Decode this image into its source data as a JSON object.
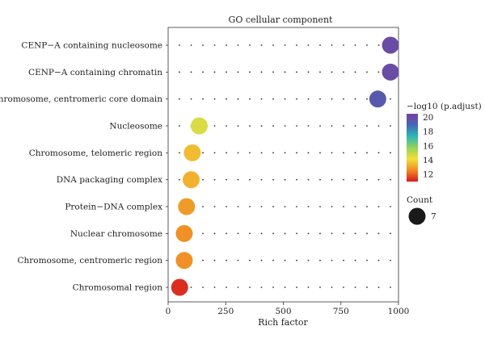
{
  "chart_data": {
    "type": "scatter",
    "title": "GO cellular component",
    "xlabel": "Rich factor",
    "ylabel": "",
    "xlim": [
      0,
      1000
    ],
    "x_ticks": [
      0,
      250,
      500,
      750,
      1000
    ],
    "categories": [
      "CENP−A containing nucleosome",
      "CENP−A containing chromatin",
      "Chromosome, centromeric core domain",
      "Nucleosome",
      "Chromosome, telomeric region",
      "DNA packaging complex",
      "Protein−DNA complex",
      "Nuclear chromosome",
      "Chromosome, centromeric region",
      "Chromosomal region"
    ],
    "series": [
      {
        "x": [
          965,
          965,
          910,
          135,
          105,
          100,
          80,
          70,
          70,
          50
        ],
        "color_value": [
          20,
          20,
          19.5,
          14.6,
          13.5,
          13.3,
          12.9,
          12.7,
          12.7,
          11.3
        ],
        "size_value": [
          7,
          7,
          7,
          7,
          7,
          7,
          7,
          7,
          7,
          7
        ]
      }
    ],
    "grid": "dotted",
    "color_legend": {
      "title": "−log10 (p.adjust)",
      "ticks": [
        12,
        14,
        16,
        18,
        20
      ],
      "range": [
        11,
        20.5
      ],
      "colors": [
        "#d7191c",
        "#f08a24",
        "#f2e03a",
        "#96d15a",
        "#2cb8b5",
        "#4468b5",
        "#7b3f9e"
      ]
    },
    "size_legend": {
      "title": "Count",
      "values": [
        7
      ],
      "labels": [
        "7"
      ]
    }
  }
}
